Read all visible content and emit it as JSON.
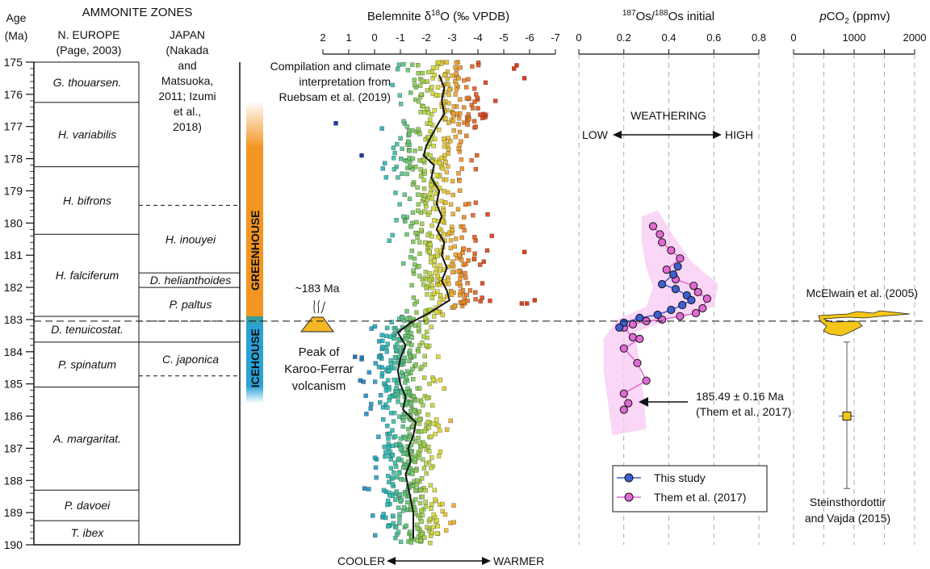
{
  "chart_data": {
    "type": "scatter",
    "age_axis": {
      "label_line1": "Age",
      "label_line2": "(Ma)",
      "range": [
        175,
        190
      ],
      "ticks": [
        "175",
        "176",
        "177",
        "178",
        "179",
        "180",
        "181",
        "182",
        "183",
        "184",
        "185",
        "186",
        "187",
        "188",
        "189",
        "190"
      ]
    },
    "zones": {
      "title": "AMMONITE ZONES",
      "europe_header": [
        "N. EUROPE",
        "(Page, 2003)"
      ],
      "japan_header": [
        "JAPAN",
        "(Nakada",
        "and",
        "Matsuoka,",
        "2011; Izumi",
        "et al.,",
        "2018)"
      ],
      "europe": [
        {
          "name": "G. thouarsen.",
          "top": 175,
          "bottom": 176.25
        },
        {
          "name": "H. variabilis",
          "top": 176.25,
          "bottom": 178.25
        },
        {
          "name": "H. bifrons",
          "top": 178.25,
          "bottom": 180.35
        },
        {
          "name": "H. falciferum",
          "top": 180.35,
          "bottom": 182.9
        },
        {
          "name": "D. tenuicostat.",
          "top": 182.9,
          "bottom": 183.7
        },
        {
          "name": "P. spinatum",
          "top": 183.7,
          "bottom": 185.1
        },
        {
          "name": "A. margaritat.",
          "top": 185.1,
          "bottom": 188.3
        },
        {
          "name": "P. davoei",
          "top": 188.3,
          "bottom": 189.25
        },
        {
          "name": "T. ibex",
          "top": 189.25,
          "bottom": 190
        }
      ],
      "japan": [
        {
          "name": "",
          "top": 175,
          "bottom": 179.45,
          "topline": "none"
        },
        {
          "name": "H. inouyei",
          "top": 179.45,
          "bottom": 181.55,
          "topline": "dashed"
        },
        {
          "name": "D. helianthoides",
          "top": 181.55,
          "bottom": 182.0,
          "topline": "solid"
        },
        {
          "name": "P. paltus",
          "top": 182.0,
          "bottom": 183.05,
          "topline": "solid"
        },
        {
          "name": "",
          "top": 183.05,
          "bottom": 183.7,
          "topline": "dashed"
        },
        {
          "name": "C. japonica",
          "top": 183.7,
          "bottom": 184.75,
          "topline": "solid"
        },
        {
          "name": "",
          "top": 184.75,
          "bottom": 190,
          "topline": "dashed"
        }
      ]
    },
    "climate": {
      "greenhouse_label": "GREENHOUSE",
      "icehouse_label": "ICEHOUSE",
      "greenhouse_range": [
        176.2,
        182.9
      ],
      "icehouse_range": [
        182.9,
        185.6
      ],
      "greenhouse_color": "#f39520",
      "icehouse_color": "#2aa2d6"
    },
    "volcanism": {
      "age_label": "~183 Ma",
      "text": [
        "Peak of",
        "Karoo-Ferrar",
        "volcanism"
      ],
      "age": 183.05,
      "dashed_line_age": 183.05
    },
    "d18o": {
      "title": "Belemnite δ18O (‰ VPDB)",
      "title_main": "Belemnite δ",
      "title_sup": "18",
      "title_tail": "O (‰ VPDB)",
      "range": [
        2,
        -7
      ],
      "ticks": [
        "2",
        "1",
        "0",
        "-1",
        "-2",
        "-3",
        "-4",
        "-5",
        "-6",
        "-7"
      ],
      "source_note": [
        "Compilation and climate",
        "interpretation from",
        "Ruebsam et al. (2019)"
      ],
      "cooler_label": "COOLER",
      "warmer_label": "WARMER",
      "mean_curve": [
        [
          -2.5,
          175.4
        ],
        [
          -2.7,
          175.8
        ],
        [
          -2.6,
          176.2
        ],
        [
          -2.7,
          176.6
        ],
        [
          -2.4,
          177.0
        ],
        [
          -2.2,
          177.3
        ],
        [
          -2.0,
          177.6
        ],
        [
          -1.9,
          177.9
        ],
        [
          -2.3,
          178.2
        ],
        [
          -2.2,
          178.6
        ],
        [
          -2.5,
          179.0
        ],
        [
          -2.4,
          179.4
        ],
        [
          -2.6,
          179.8
        ],
        [
          -2.4,
          180.2
        ],
        [
          -2.7,
          180.6
        ],
        [
          -2.6,
          181.0
        ],
        [
          -2.8,
          181.4
        ],
        [
          -2.6,
          181.8
        ],
        [
          -2.8,
          182.1
        ],
        [
          -2.9,
          182.4
        ],
        [
          -2.1,
          182.8
        ],
        [
          -1.4,
          183.1
        ],
        [
          -0.9,
          183.4
        ],
        [
          -1.2,
          183.8
        ],
        [
          -1.0,
          184.2
        ],
        [
          -0.9,
          184.6
        ],
        [
          -1.0,
          185.0
        ],
        [
          -1.2,
          185.4
        ],
        [
          -1.1,
          185.8
        ],
        [
          -1.6,
          186.2
        ],
        [
          -1.5,
          186.6
        ],
        [
          -1.3,
          187.0
        ],
        [
          -1.4,
          187.4
        ],
        [
          -1.2,
          187.8
        ],
        [
          -1.3,
          188.2
        ],
        [
          -1.4,
          188.6
        ],
        [
          -1.5,
          189.0
        ],
        [
          -1.5,
          189.4
        ],
        [
          -1.5,
          189.8
        ]
      ],
      "outliers": [
        [
          -5.5,
          175.1
        ],
        [
          -5.4,
          175.2
        ],
        [
          -5.8,
          175.5
        ],
        [
          1.5,
          176.9
        ],
        [
          0.5,
          177.9
        ],
        [
          -5.8,
          180.9
        ],
        [
          -6.2,
          182.4
        ],
        [
          -5.9,
          182.5
        ],
        [
          -5.7,
          182.5
        ]
      ]
    },
    "osmium": {
      "title": "187Os/188Os initial",
      "title_sup1": "187",
      "title_os1": "Os/",
      "title_sup2": "188",
      "title_tail": "Os initial",
      "range": [
        0,
        0.8
      ],
      "ticks": [
        "0",
        "0.2",
        "0.4",
        "0.6",
        "0.8"
      ],
      "weathering_label": "WEATHERING",
      "low_label": "LOW",
      "high_label": "HIGH",
      "this_study": [
        [
          0.44,
          181.35
        ],
        [
          0.42,
          181.6
        ],
        [
          0.37,
          181.9
        ],
        [
          0.43,
          182.05
        ],
        [
          0.48,
          182.25
        ],
        [
          0.5,
          182.4
        ],
        [
          0.46,
          182.55
        ],
        [
          0.41,
          182.7
        ],
        [
          0.35,
          182.85
        ],
        [
          0.27,
          182.95
        ],
        [
          0.2,
          183.1
        ],
        [
          0.18,
          183.25
        ]
      ],
      "them_2017": [
        [
          0.33,
          180.1
        ],
        [
          0.36,
          180.35
        ],
        [
          0.37,
          180.6
        ],
        [
          0.41,
          180.85
        ],
        [
          0.45,
          181.1
        ],
        [
          0.39,
          181.45
        ],
        [
          0.43,
          181.75
        ],
        [
          0.51,
          181.95
        ],
        [
          0.53,
          182.15
        ],
        [
          0.57,
          182.35
        ],
        [
          0.55,
          182.65
        ],
        [
          0.52,
          182.8
        ],
        [
          0.45,
          182.9
        ],
        [
          0.37,
          183.0
        ],
        [
          0.3,
          183.05
        ],
        [
          0.24,
          183.15
        ],
        [
          0.2,
          183.25
        ],
        [
          0.24,
          183.55
        ],
        [
          0.27,
          183.6
        ],
        [
          0.2,
          183.9
        ],
        [
          0.26,
          184.35
        ],
        [
          0.3,
          184.9
        ],
        [
          0.2,
          185.3
        ],
        [
          0.22,
          185.6
        ],
        [
          0.2,
          185.8
        ]
      ],
      "annotation": [
        "185.49 ± 0.16 Ma",
        "(Them et al., 2017)"
      ],
      "annotation_age": 185.49,
      "legend": [
        "This study",
        "Them et al. (2017)"
      ],
      "this_study_color": "#3d5fd1",
      "them_color": "#e06ad4",
      "band_color": "#f8c8f4"
    },
    "pco2": {
      "title_p": "p",
      "title_co": "CO",
      "title_sub": "2",
      "title_tail": " (ppmv)",
      "range": [
        0,
        2000
      ],
      "ticks": [
        "0",
        "1000",
        "2000"
      ],
      "mcelwain_label": "McElwain et al. (2005)",
      "steinsthordottir_label": [
        "Steinsthordottir",
        "and Vajda (2015)"
      ],
      "point": {
        "value": 880,
        "age": 186.0,
        "err_top": 183.7,
        "err_bottom": 188.25
      },
      "fill_color": "#f5c518"
    }
  }
}
